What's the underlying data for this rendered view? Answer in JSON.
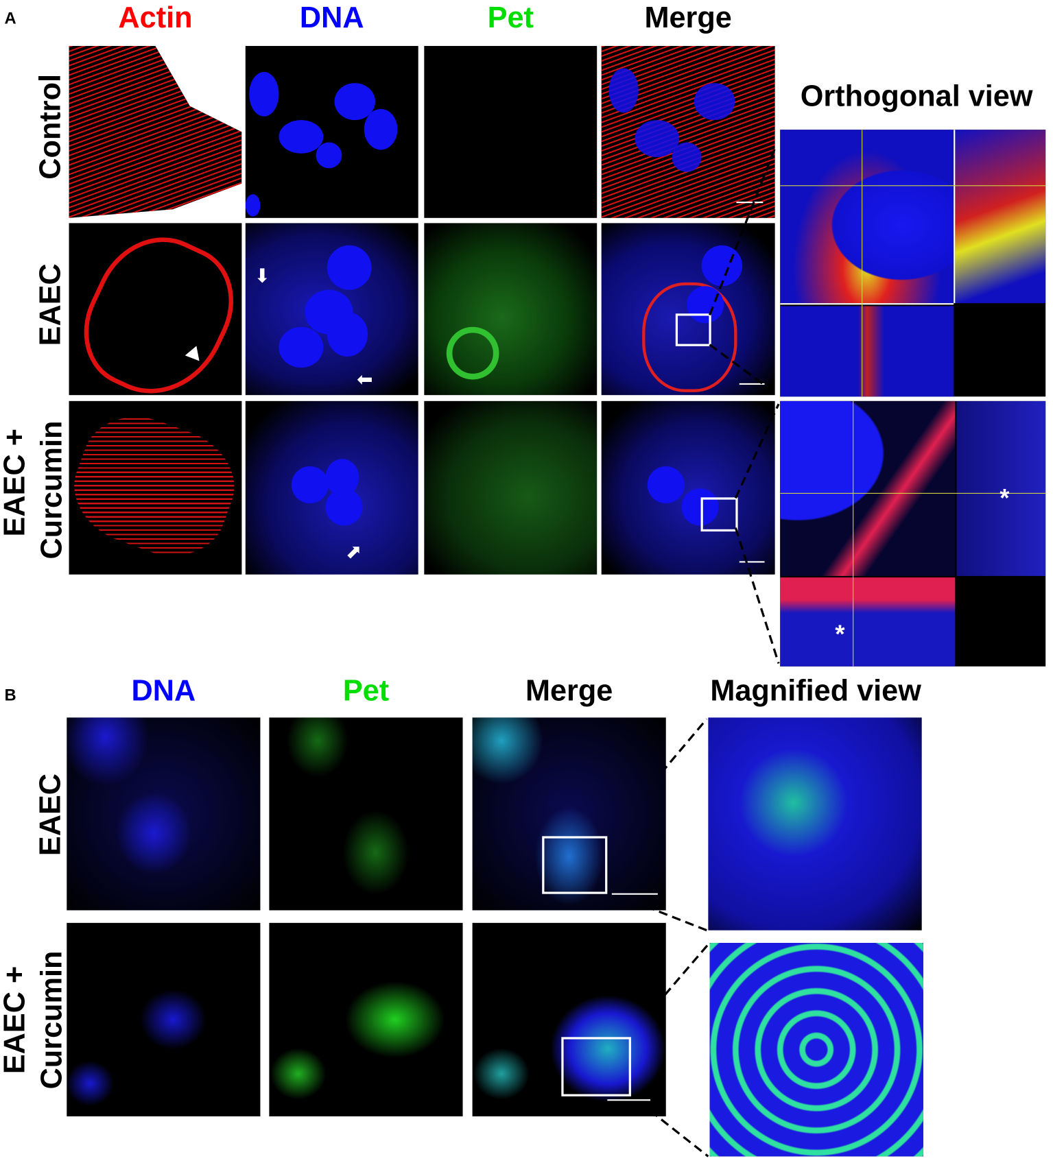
{
  "panel_a": {
    "letter": "A",
    "columns": [
      {
        "label": "Actin",
        "color": "#ff0000"
      },
      {
        "label": "DNA",
        "color": "#0000ff"
      },
      {
        "label": "Pet",
        "color": "#00dd00"
      },
      {
        "label": "Merge",
        "color": "#000000"
      }
    ],
    "rows": [
      "Control",
      "EAEC",
      "EAEC +\nCurcumin"
    ],
    "row_line1": [
      "Control",
      "EAEC",
      "EAEC +"
    ],
    "row_line2": [
      "",
      "",
      "Curcumin"
    ],
    "orthogonal_title": "Orthogonal view",
    "asterisk": "*"
  },
  "panel_b": {
    "letter": "B",
    "columns": [
      {
        "label": "DNA",
        "color": "#0000ff"
      },
      {
        "label": "Pet",
        "color": "#00dd00"
      },
      {
        "label": "Merge",
        "color": "#000000"
      }
    ],
    "magnified_title": "Magnified view",
    "row_line1": [
      "EAEC",
      "EAEC +"
    ],
    "row_line2": [
      "",
      "Curcumin"
    ]
  }
}
